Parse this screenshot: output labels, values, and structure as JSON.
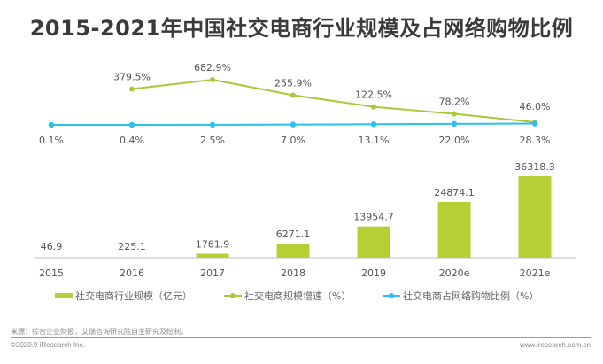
{
  "chart_data": {
    "type": "bar+line",
    "title": "2015-2021年中国社交电商行业规模及占网络购物比例",
    "categories": [
      "2015",
      "2016",
      "2017",
      "2018",
      "2019",
      "2020e",
      "2021e"
    ],
    "series": [
      {
        "name": "社交电商行业规模（亿元）",
        "type": "bar",
        "color": "#b5cf34",
        "values": [
          46.9,
          225.1,
          1761.9,
          6271.1,
          13954.7,
          24874.1,
          36318.3
        ],
        "labels": [
          "46.9",
          "225.1",
          "1761.9",
          "6271.1",
          "13954.7",
          "24874.1",
          "36318.3"
        ]
      },
      {
        "name": "社交电商规模增速（%）",
        "type": "line",
        "color": "#a9c83a",
        "values": [
          null,
          379.5,
          682.9,
          255.9,
          122.5,
          78.2,
          46.0
        ],
        "labels": [
          "",
          "379.5%",
          "682.9%",
          "255.9%",
          "122.5%",
          "78.2%",
          "46.0%"
        ]
      },
      {
        "name": "社交电商占网络购物比例（%）",
        "type": "line",
        "color": "#2bc1ea",
        "values": [
          0.1,
          0.4,
          2.5,
          7.0,
          13.1,
          22.0,
          28.3
        ],
        "labels": [
          "0.1%",
          "0.4%",
          "2.5%",
          "7.0%",
          "13.1%",
          "22.0%",
          "28.3%"
        ]
      }
    ],
    "legend_position": "bottom",
    "grid": false
  },
  "footer": {
    "source": "来源：综合企业财报，艾瑞咨询研究院自主研究及绘制。",
    "copyright": "©2020.9 iResearch Inc.",
    "website": "www.iresearch.com.cn"
  }
}
